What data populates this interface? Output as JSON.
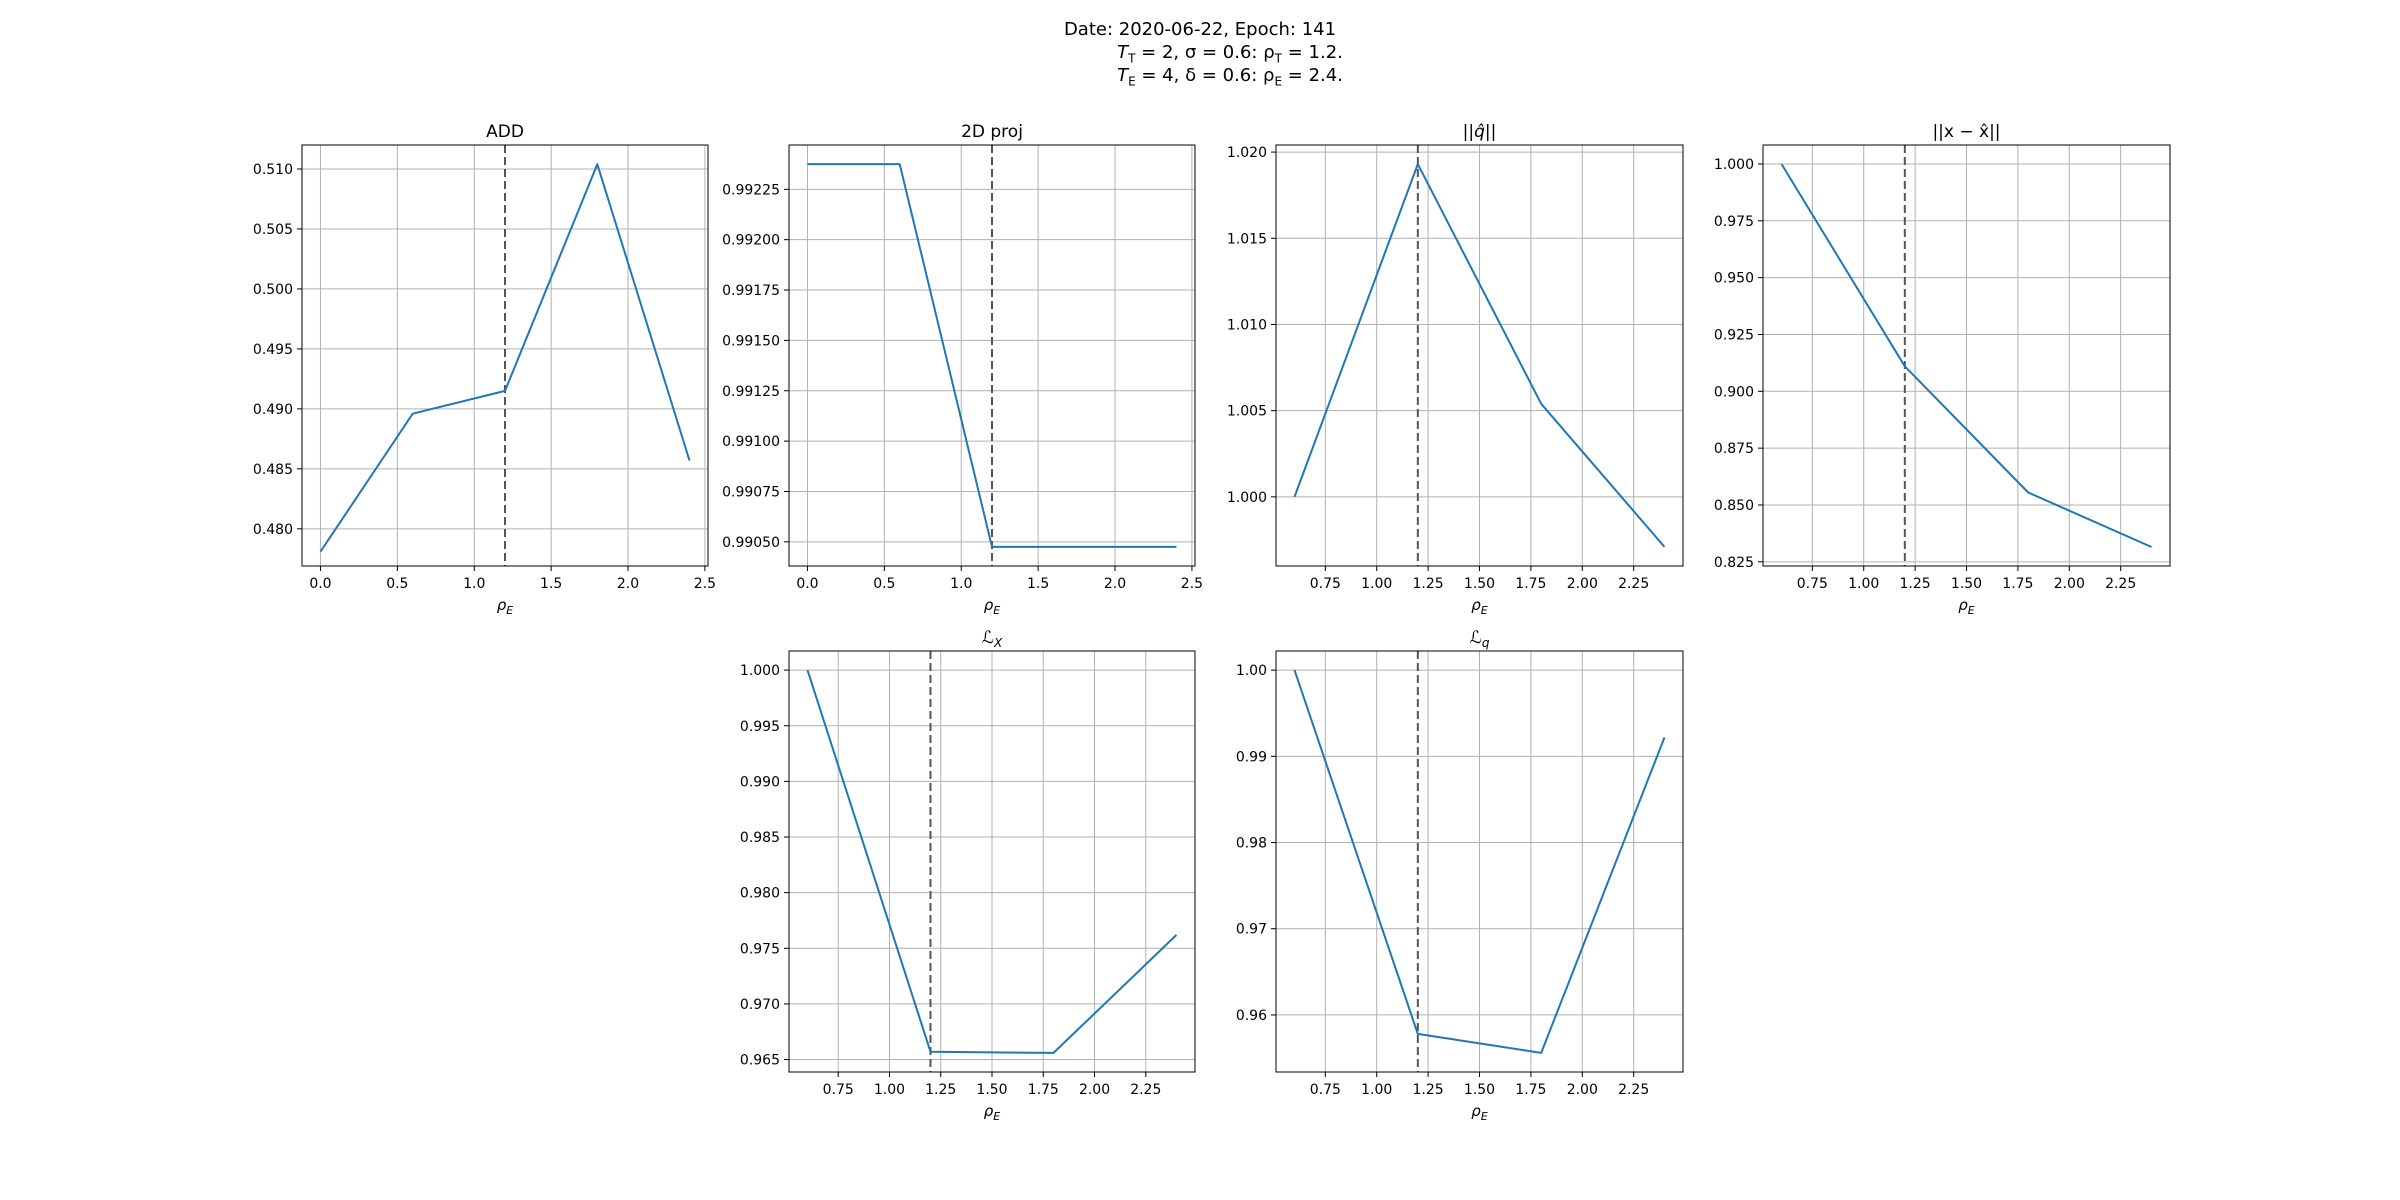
{
  "suptitle": {
    "line1": "Date: 2020-06-22, Epoch: 141",
    "line2_pre": "T",
    "line2_sub": "T",
    "line2_rest": " = 2, σ = 0.6: ρ",
    "line2_sub2": "T",
    "line2_end": " = 1.2.",
    "line3_pre": "T",
    "line3_sub": "E",
    "line3_rest": " = 4, δ = 0.6: ρ",
    "line3_sub2": "E",
    "line3_end": " = 2.4."
  },
  "colors": {
    "line": "#1f77b4",
    "vline": "#555555",
    "grid": "#b0b0b0",
    "axes": "#000000"
  },
  "chart_data": [
    {
      "type": "line",
      "title": "ADD",
      "xlabel": "ρE",
      "x": [
        0.0,
        0.6,
        1.2,
        1.8,
        2.4
      ],
      "y": [
        0.4781,
        0.4896,
        0.4915,
        0.5104,
        0.4857
      ],
      "xlim": [
        -0.12,
        2.52
      ],
      "ylim": [
        0.4769,
        0.512
      ],
      "xticks": [
        0.0,
        0.5,
        1.0,
        1.5,
        2.0,
        2.5
      ],
      "xticklabels": [
        "0.0",
        "0.5",
        "1.0",
        "1.5",
        "2.0",
        "2.5"
      ],
      "yticks": [
        0.48,
        0.485,
        0.49,
        0.495,
        0.5,
        0.505,
        0.51
      ],
      "yticklabels": [
        "0.480",
        "0.485",
        "0.490",
        "0.495",
        "0.500",
        "0.505",
        "0.510"
      ],
      "vline": 1.2,
      "grid": true
    },
    {
      "type": "line",
      "title": "2D proj",
      "xlabel": "ρE",
      "x": [
        0.0,
        0.6,
        1.2,
        1.8,
        2.4
      ],
      "y": [
        0.992375,
        0.992375,
        0.990475,
        0.990475,
        0.990475
      ],
      "xlim": [
        -0.12,
        2.52
      ],
      "ylim": [
        0.99038,
        0.99247
      ],
      "xticks": [
        0.0,
        0.5,
        1.0,
        1.5,
        2.0,
        2.5
      ],
      "xticklabels": [
        "0.0",
        "0.5",
        "1.0",
        "1.5",
        "2.0",
        "2.5"
      ],
      "yticks": [
        0.9905,
        0.99075,
        0.991,
        0.99125,
        0.9915,
        0.99175,
        0.992,
        0.99225
      ],
      "yticklabels": [
        "0.99050",
        "0.99075",
        "0.99100",
        "0.99125",
        "0.99150",
        "0.99175",
        "0.99200",
        "0.99225"
      ],
      "vline": 1.2,
      "grid": true
    },
    {
      "type": "line",
      "title_pre": "||",
      "title_mid": "q̂",
      "title_post": "||",
      "xlabel": "ρE",
      "x": [
        0.6,
        1.2,
        1.8,
        2.4
      ],
      "y": [
        1.0,
        1.0193,
        1.0054,
        0.9971
      ],
      "xlim": [
        0.51,
        2.49
      ],
      "ylim": [
        0.99599,
        1.02041
      ],
      "xticks": [
        0.75,
        1.0,
        1.25,
        1.5,
        1.75,
        2.0,
        2.25
      ],
      "xticklabels": [
        "0.75",
        "1.00",
        "1.25",
        "1.50",
        "1.75",
        "2.00",
        "2.25"
      ],
      "yticks": [
        1.0,
        1.005,
        1.01,
        1.015,
        1.02
      ],
      "yticklabels": [
        "1.000",
        "1.005",
        "1.010",
        "1.015",
        "1.020"
      ],
      "vline": 1.2,
      "grid": true
    },
    {
      "type": "line",
      "title": "||x − x̂||",
      "xlabel": "ρE",
      "x": [
        0.6,
        1.2,
        1.8,
        2.4
      ],
      "y": [
        1.0,
        0.911,
        0.8555,
        0.8315
      ],
      "xlim": [
        0.51,
        2.49
      ],
      "ylim": [
        0.82316,
        1.00834
      ],
      "xticks": [
        0.75,
        1.0,
        1.25,
        1.5,
        1.75,
        2.0,
        2.25
      ],
      "xticklabels": [
        "0.75",
        "1.00",
        "1.25",
        "1.50",
        "1.75",
        "2.00",
        "2.25"
      ],
      "yticks": [
        0.825,
        0.85,
        0.875,
        0.9,
        0.925,
        0.95,
        0.975,
        1.0
      ],
      "yticklabels": [
        "0.825",
        "0.850",
        "0.875",
        "0.900",
        "0.925",
        "0.950",
        "0.975",
        "1.000"
      ],
      "vline": 1.2,
      "grid": true
    },
    {
      "type": "line",
      "title_script": "ℒ",
      "title_sub": "X",
      "xlabel": "ρE",
      "x": [
        0.6,
        1.2,
        1.8,
        2.4
      ],
      "y": [
        1.0,
        0.9657,
        0.9656,
        0.9762
      ],
      "xlim": [
        0.51,
        2.49
      ],
      "ylim": [
        0.96388,
        1.00172
      ],
      "xticks": [
        0.75,
        1.0,
        1.25,
        1.5,
        1.75,
        2.0,
        2.25
      ],
      "xticklabels": [
        "0.75",
        "1.00",
        "1.25",
        "1.50",
        "1.75",
        "2.00",
        "2.25"
      ],
      "yticks": [
        0.965,
        0.97,
        0.975,
        0.98,
        0.985,
        0.99,
        0.995,
        1.0
      ],
      "yticklabels": [
        "0.965",
        "0.970",
        "0.975",
        "0.980",
        "0.985",
        "0.990",
        "0.995",
        "1.000"
      ],
      "vline": 1.2,
      "grid": true
    },
    {
      "type": "line",
      "title_script": "ℒ",
      "title_sub": "q",
      "xlabel": "ρE",
      "x": [
        0.6,
        1.2,
        1.8,
        2.4
      ],
      "y": [
        1.0,
        0.9578,
        0.9556,
        0.9922
      ],
      "xlim": [
        0.51,
        2.49
      ],
      "ylim": [
        0.95338,
        1.00222
      ],
      "xticks": [
        0.75,
        1.0,
        1.25,
        1.5,
        1.75,
        2.0,
        2.25
      ],
      "xticklabels": [
        "0.75",
        "1.00",
        "1.25",
        "1.50",
        "1.75",
        "2.00",
        "2.25"
      ],
      "yticks": [
        0.96,
        0.97,
        0.98,
        0.99,
        1.0
      ],
      "yticklabels": [
        "0.96",
        "0.97",
        "0.98",
        "0.99",
        "1.00"
      ],
      "vline": 1.2,
      "grid": true
    }
  ]
}
